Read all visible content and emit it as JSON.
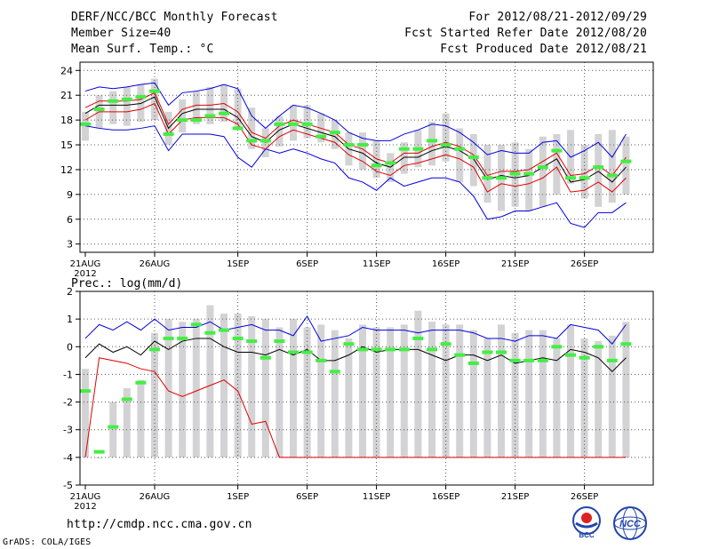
{
  "header": {
    "title": "DERF/NCC/BCC Monthly Forecast",
    "member_size": "Member Size=40",
    "variable": "Mean Surf. Temp.: °C",
    "period": "For 2012/08/21-2012/09/29",
    "refer_date": "Fcst Started Refer Date 2012/08/20",
    "produced_date": "Fcst Produced Date 2012/08/21"
  },
  "footer": {
    "url": "http://cmdp.ncc.cma.gov.cn",
    "grads": "GrADS: COLA/IGES"
  },
  "logos": {
    "left": "BCC",
    "right": "NCC"
  },
  "colors": {
    "box": "#d3d3d5",
    "median": "#000000",
    "envelope": "#0000dd",
    "spread": "#dd0000",
    "observed": "#44ee44",
    "grid": "#555555"
  },
  "chart_data": [
    {
      "type": "line",
      "panel": "temperature",
      "title": "Mean Surf. Temp.: °C",
      "x": [
        "21AUG",
        "22AUG",
        "23AUG",
        "24AUG",
        "25AUG",
        "26AUG",
        "27AUG",
        "28AUG",
        "29AUG",
        "30AUG",
        "31AUG",
        "1SEP",
        "2SEP",
        "3SEP",
        "4SEP",
        "5SEP",
        "6SEP",
        "7SEP",
        "8SEP",
        "9SEP",
        "10SEP",
        "11SEP",
        "12SEP",
        "13SEP",
        "14SEP",
        "15SEP",
        "16SEP",
        "17SEP",
        "18SEP",
        "19SEP",
        "20SEP",
        "21SEP",
        "22SEP",
        "23SEP",
        "24SEP",
        "25SEP",
        "26SEP",
        "27SEP",
        "28SEP",
        "29SEP"
      ],
      "xticks": [
        "21AUG",
        "26AUG",
        "1SEP",
        "6SEP",
        "11SEP",
        "16SEP",
        "21SEP",
        "26SEP"
      ],
      "xtick_year": "2012",
      "ylim": [
        2,
        25
      ],
      "yticks": [
        3,
        6,
        9,
        12,
        15,
        18,
        21,
        24
      ],
      "box_high": [
        19.0,
        21.0,
        21.5,
        22.0,
        22.3,
        23.0,
        19.0,
        20.5,
        21.5,
        22.0,
        22.3,
        21.8,
        19.5,
        17.0,
        18.5,
        19.8,
        19.8,
        18.8,
        18.0,
        16.5,
        16.5,
        15.5,
        14.0,
        15.3,
        16.8,
        17.8,
        18.8,
        17.0,
        16.3,
        15.0,
        15.0,
        15.3,
        14.5,
        16.0,
        16.3,
        16.8,
        15.0,
        16.3,
        16.8,
        16.0
      ],
      "box_low": [
        15.5,
        17.0,
        17.5,
        17.3,
        17.8,
        18.0,
        15.0,
        16.5,
        17.5,
        17.5,
        17.8,
        17.2,
        14.5,
        13.5,
        14.8,
        15.5,
        15.8,
        15.3,
        14.5,
        12.5,
        12.0,
        11.0,
        10.5,
        11.5,
        12.3,
        12.5,
        13.0,
        10.5,
        10.0,
        8.0,
        7.0,
        7.5,
        7.0,
        7.5,
        9.0,
        10.3,
        8.5,
        7.5,
        8.0,
        9.0
      ],
      "median": [
        18.8,
        19.8,
        19.8,
        19.8,
        20.0,
        20.8,
        17.0,
        18.8,
        19.3,
        19.3,
        19.3,
        18.3,
        16.0,
        15.3,
        16.8,
        17.5,
        17.0,
        16.5,
        16.0,
        14.5,
        14.0,
        12.8,
        12.3,
        13.5,
        13.5,
        14.3,
        14.8,
        14.3,
        13.3,
        10.8,
        11.3,
        11.0,
        11.3,
        12.3,
        13.3,
        10.5,
        10.8,
        11.8,
        10.5,
        12.3
      ],
      "upper": [
        21.5,
        22.0,
        21.8,
        22.0,
        22.3,
        22.5,
        19.8,
        21.3,
        21.5,
        21.8,
        22.3,
        21.8,
        18.5,
        17.0,
        18.5,
        19.8,
        19.5,
        18.8,
        18.0,
        16.5,
        15.8,
        15.5,
        15.5,
        16.3,
        16.8,
        17.5,
        17.3,
        16.5,
        15.3,
        13.8,
        14.3,
        14.0,
        14.0,
        15.3,
        15.5,
        13.5,
        14.3,
        15.3,
        13.5,
        16.3
      ],
      "lower": [
        17.3,
        17.0,
        16.8,
        16.8,
        17.0,
        17.3,
        14.3,
        16.3,
        16.3,
        16.3,
        16.0,
        13.5,
        12.3,
        14.5,
        14.0,
        14.5,
        14.0,
        13.3,
        12.8,
        11.0,
        10.5,
        9.5,
        11.0,
        10.0,
        10.5,
        11.0,
        11.0,
        10.5,
        8.8,
        6.0,
        6.3,
        7.0,
        7.0,
        7.5,
        8.0,
        5.5,
        5.0,
        6.8,
        6.8,
        8.0
      ],
      "spread_high": [
        19.5,
        20.3,
        20.3,
        20.3,
        20.5,
        21.3,
        17.5,
        19.3,
        19.8,
        19.8,
        20.0,
        19.0,
        16.5,
        15.8,
        17.3,
        18.0,
        17.5,
        17.0,
        16.5,
        15.0,
        14.5,
        13.3,
        12.8,
        14.0,
        14.0,
        14.8,
        15.3,
        14.8,
        13.8,
        11.3,
        11.8,
        11.8,
        12.0,
        13.0,
        14.0,
        11.3,
        11.5,
        12.5,
        11.3,
        13.5
      ],
      "spread_low": [
        18.0,
        19.0,
        19.0,
        19.0,
        19.3,
        20.0,
        16.3,
        18.0,
        18.3,
        18.3,
        18.3,
        17.5,
        15.0,
        14.5,
        16.0,
        16.8,
        16.3,
        15.8,
        15.3,
        13.8,
        13.0,
        11.8,
        11.3,
        12.5,
        12.8,
        13.3,
        13.8,
        13.3,
        12.3,
        9.3,
        10.3,
        10.0,
        10.3,
        11.0,
        12.3,
        9.3,
        9.5,
        10.5,
        9.3,
        11.0
      ],
      "observed": [
        17.5,
        19.3,
        20.3,
        20.5,
        20.8,
        21.5,
        16.3,
        18.0,
        18.0,
        18.5,
        18.8,
        17.0,
        15.5,
        15.5,
        17.5,
        17.5,
        17.5,
        16.0,
        16.5,
        15.0,
        15.0,
        12.5,
        12.8,
        14.5,
        14.5,
        15.5,
        15.0,
        14.5,
        13.5,
        11.0,
        11.0,
        11.5,
        11.5,
        12.3,
        14.3,
        11.0,
        11.0,
        12.3,
        11.3,
        13.0
      ]
    },
    {
      "type": "line",
      "panel": "precipitation",
      "title": "Prec.: log(mm/d)",
      "x": [
        "21AUG",
        "22AUG",
        "23AUG",
        "24AUG",
        "25AUG",
        "26AUG",
        "27AUG",
        "28AUG",
        "29AUG",
        "30AUG",
        "31AUG",
        "1SEP",
        "2SEP",
        "3SEP",
        "4SEP",
        "5SEP",
        "6SEP",
        "7SEP",
        "8SEP",
        "9SEP",
        "10SEP",
        "11SEP",
        "12SEP",
        "13SEP",
        "14SEP",
        "15SEP",
        "16SEP",
        "17SEP",
        "18SEP",
        "19SEP",
        "20SEP",
        "21SEP",
        "22SEP",
        "23SEP",
        "24SEP",
        "25SEP",
        "26SEP",
        "27SEP",
        "28SEP",
        "29SEP"
      ],
      "xticks": [
        "21AUG",
        "26AUG",
        "1SEP",
        "6SEP",
        "11SEP",
        "16SEP",
        "21SEP",
        "26SEP"
      ],
      "xtick_year": "2012",
      "ylim": [
        -5,
        2
      ],
      "yticks": [
        -5,
        -4,
        -3,
        -2,
        -1,
        0,
        1,
        2
      ],
      "box_high": [
        -0.8,
        -4.0,
        -2.0,
        -1.5,
        -1.2,
        0.5,
        1.0,
        0.9,
        1.0,
        1.5,
        1.2,
        1.2,
        1.1,
        1.0,
        0.7,
        1.0,
        0.7,
        0.8,
        0.6,
        0.3,
        0.8,
        0.7,
        0.7,
        0.8,
        1.3,
        0.9,
        0.8,
        0.8,
        0.6,
        0.3,
        0.8,
        0.5,
        0.6,
        0.6,
        0.3,
        0.8,
        0.3,
        0.2,
        0.4,
        0.9
      ],
      "box_low": [
        -4.0,
        -4.0,
        -4.0,
        -4.0,
        -4.0,
        -4.0,
        -4.0,
        -4.0,
        -4.0,
        -4.0,
        -4.0,
        -4.0,
        -4.0,
        -4.0,
        -4.0,
        -4.0,
        -4.0,
        -4.0,
        -4.0,
        -4.0,
        -4.0,
        -4.0,
        -4.0,
        -4.0,
        -4.0,
        -4.0,
        -4.0,
        -4.0,
        -4.0,
        -4.0,
        -4.0,
        -4.0,
        -4.0,
        -4.0,
        -4.0,
        -4.0,
        -4.0,
        -4.0,
        -4.0,
        -4.0
      ],
      "median": [
        -0.4,
        0.1,
        -0.2,
        0.0,
        -0.3,
        0.2,
        -0.1,
        0.2,
        0.3,
        0.3,
        0.0,
        -0.2,
        -0.2,
        -0.3,
        -0.1,
        -0.3,
        -0.1,
        -0.5,
        -0.5,
        -0.3,
        0.0,
        -0.2,
        -0.1,
        -0.1,
        -0.1,
        -0.3,
        -0.5,
        -0.3,
        -0.3,
        -0.5,
        -0.3,
        -0.6,
        -0.5,
        -0.4,
        -0.5,
        -0.1,
        -0.2,
        -0.4,
        -0.9,
        -0.4
      ],
      "upper": [
        0.3,
        0.8,
        0.6,
        0.9,
        0.6,
        1.0,
        0.6,
        0.7,
        0.7,
        0.9,
        0.6,
        0.7,
        0.8,
        0.6,
        0.6,
        0.4,
        1.1,
        0.2,
        0.3,
        0.4,
        0.7,
        0.6,
        0.6,
        0.6,
        0.5,
        0.6,
        0.6,
        0.6,
        0.5,
        0.3,
        0.3,
        0.2,
        0.4,
        0.4,
        0.3,
        0.8,
        0.7,
        0.6,
        0.1,
        0.8
      ],
      "lower": [
        -4.0,
        -0.4,
        -0.5,
        -0.6,
        -0.8,
        -0.9,
        -1.6,
        -1.8,
        -1.6,
        -1.4,
        -1.2,
        -1.6,
        -2.8,
        -2.7,
        -4.0,
        -4.0,
        -4.0,
        -4.0,
        -4.0,
        -4.0,
        -4.0,
        -4.0,
        -4.0,
        -4.0,
        -4.0,
        -4.0,
        -4.0,
        -4.0,
        -4.0,
        -4.0,
        -4.0,
        -4.0,
        -4.0,
        -4.0,
        -4.0,
        -4.0,
        -4.0,
        -4.0,
        -4.0,
        -4.0
      ],
      "observed": [
        -1.6,
        -3.8,
        -2.9,
        -1.9,
        -1.3,
        -0.1,
        0.3,
        0.3,
        0.8,
        0.5,
        0.6,
        0.3,
        0.2,
        -0.4,
        0.2,
        -0.2,
        -0.2,
        -0.5,
        -0.9,
        0.1,
        -0.1,
        -0.1,
        -0.1,
        -0.1,
        0.3,
        -0.1,
        0.1,
        -0.3,
        -0.6,
        -0.2,
        -0.2,
        -0.5,
        -0.5,
        -0.5,
        0.0,
        -0.3,
        -0.4,
        0.0,
        -0.5,
        0.1
      ]
    }
  ]
}
